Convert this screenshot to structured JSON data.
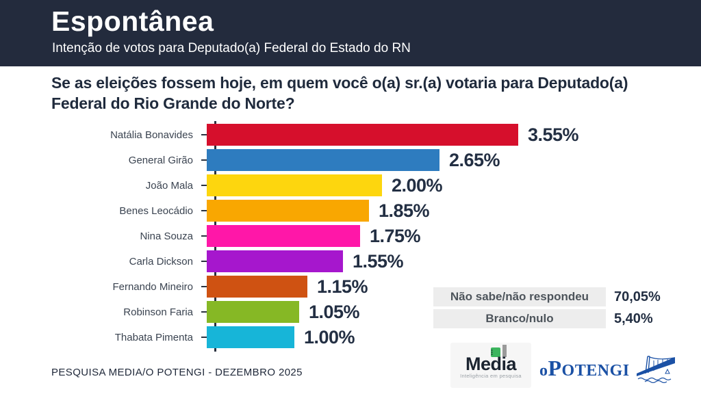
{
  "header": {
    "title": "Espontânea",
    "subtitle": "Intenção de votos para Deputado(a) Federal do Estado do RN"
  },
  "question": "Se as eleições fossem hoje, em quem você o(a) sr.(a) votaria para Deputado(a) Federal do Rio Grande do Norte?",
  "chart_data": {
    "type": "bar",
    "orientation": "horizontal",
    "title": "",
    "xlabel": "",
    "ylabel": "",
    "xlim": [
      0,
      3.55
    ],
    "grid": false,
    "categories": [
      "Natália Bonavides",
      "General Girão",
      "João Mala",
      "Benes Leocádio",
      "Nina Souza",
      "Carla Dickson",
      "Fernando Mineiro",
      "Robinson Faria",
      "Thabata Pimenta"
    ],
    "values": [
      3.55,
      2.65,
      2.0,
      1.85,
      1.75,
      1.55,
      1.15,
      1.05,
      1.0
    ],
    "value_labels": [
      "3.55%",
      "2.65%",
      "2.00%",
      "1.85%",
      "1.75%",
      "1.55%",
      "1.15%",
      "1.05%",
      "1.00%"
    ],
    "bar_colors": [
      "#d60f2c",
      "#2e7cbf",
      "#fdd60e",
      "#f9a701",
      "#ff17a8",
      "#a617cd",
      "#cf5212",
      "#86b825",
      "#17b5d8"
    ]
  },
  "side_table": {
    "rows": [
      {
        "label": "Não sabe/não respondeu",
        "value": "70,05%"
      },
      {
        "label": "Branco/nulo",
        "value": "5,40%"
      }
    ]
  },
  "footer": {
    "source": "PESQUISA MEDIA/O POTENGI - DEZEMBRO 2025"
  },
  "logos": {
    "media": {
      "name": "Media",
      "tagline": "Inteligência em pesquisa",
      "icon_green": "#3cb55e",
      "icon_gray": "#9a9a9a"
    },
    "potengi": {
      "first": "o",
      "second": "P",
      "rest": "OTENGI",
      "blue": "#1b51a5"
    }
  },
  "colors": {
    "header_bg": "#232b3d",
    "navy_text": "#232f43",
    "question_text": "#1f2a3c",
    "table_bg": "#ededed",
    "table_label": "#4d545b",
    "axis": "#2b3340"
  }
}
